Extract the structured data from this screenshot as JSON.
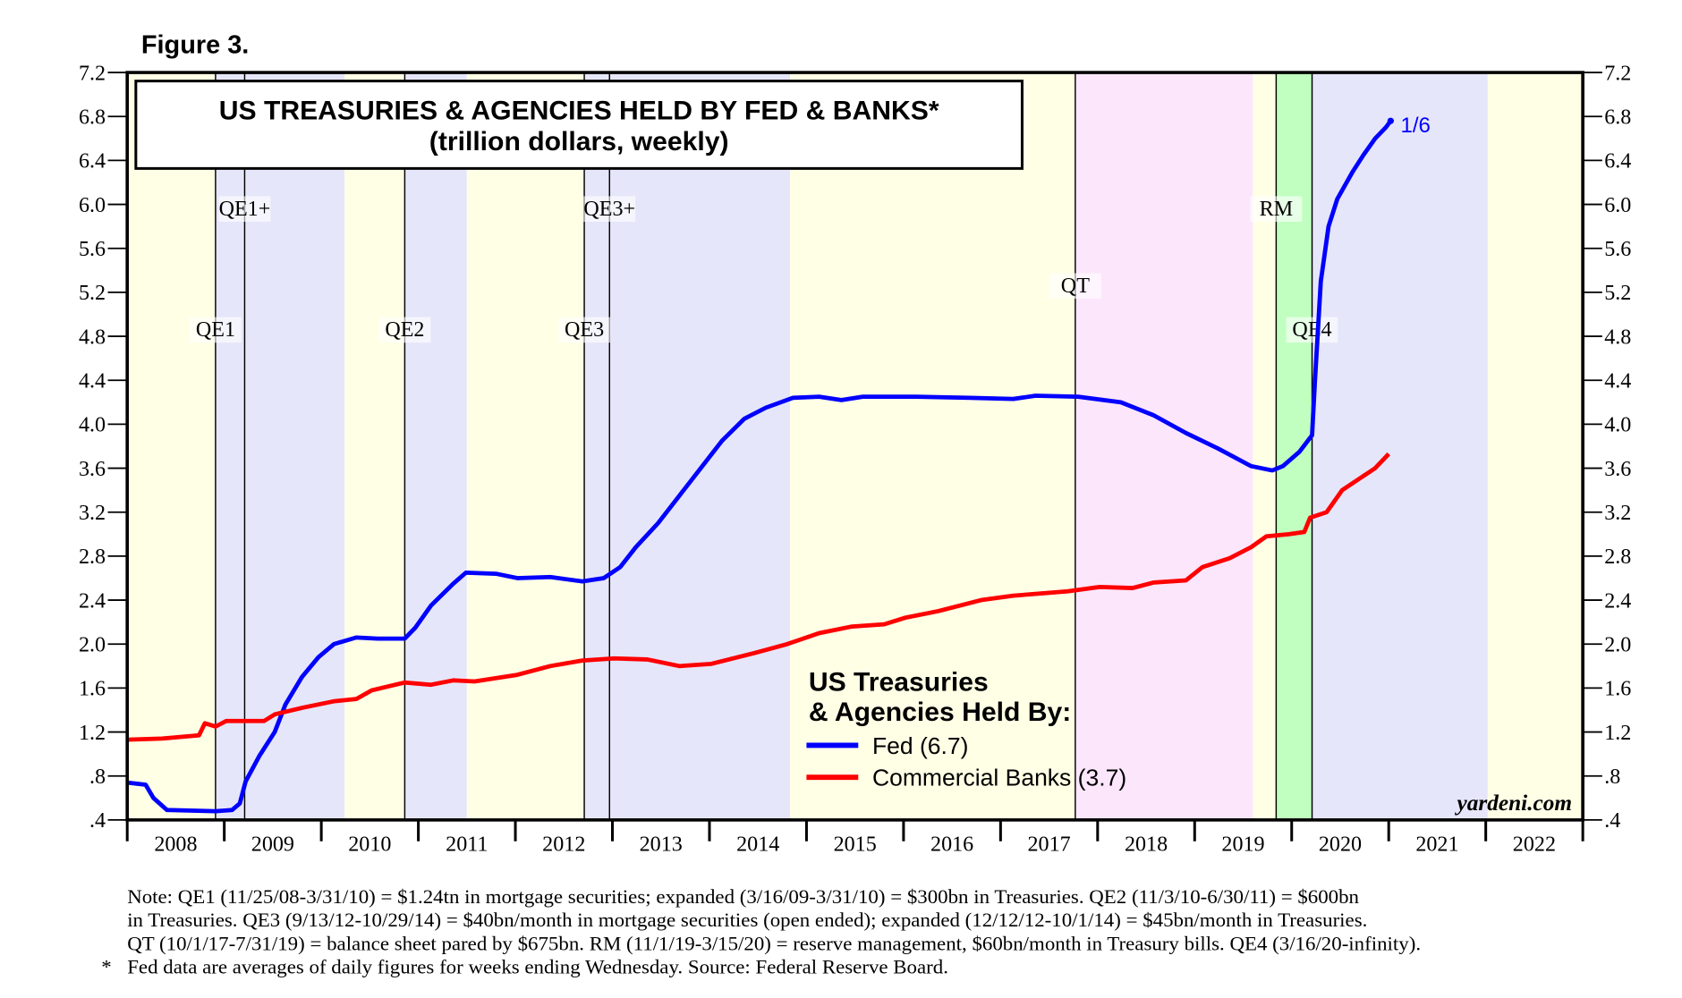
{
  "figure_label": "Figure 3.",
  "chart_data": {
    "type": "line",
    "title": "US TREASURIES & AGENCIES HELD BY FED & BANKS*",
    "subtitle": "(trillion dollars, weekly)",
    "xlabel": "",
    "ylabel": "",
    "xlim": [
      2008,
      2023
    ],
    "ylim": [
      0.4,
      7.2
    ],
    "x_tick_labels": [
      "2008",
      "2009",
      "2010",
      "2011",
      "2012",
      "2013",
      "2014",
      "2015",
      "2016",
      "2017",
      "2018",
      "2019",
      "2020",
      "2021",
      "2022"
    ],
    "y_ticks": [
      0.4,
      0.8,
      1.2,
      1.6,
      2.0,
      2.4,
      2.8,
      3.2,
      3.6,
      4.0,
      4.4,
      4.8,
      5.2,
      5.6,
      6.0,
      6.4,
      6.8,
      7.2
    ],
    "y_tick_labels": [
      ".4",
      ".8",
      "1.2",
      "1.6",
      "2.0",
      "2.4",
      "2.8",
      "3.2",
      "3.6",
      "4.0",
      "4.4",
      "4.8",
      "5.2",
      "5.6",
      "6.0",
      "6.4",
      "6.8",
      "7.2"
    ],
    "grid": false,
    "legend_title": [
      "US Treasuries",
      "& Agencies Held By:"
    ],
    "legend_placement": "bottom-center",
    "series": [
      {
        "name": "Fed (6.7)",
        "color": "#0000ff",
        "x": [
          2008.0,
          2008.19,
          2008.27,
          2008.41,
          2008.91,
          2009.08,
          2009.16,
          2009.22,
          2009.36,
          2009.52,
          2009.63,
          2009.8,
          2009.97,
          2010.13,
          2010.36,
          2010.58,
          2010.86,
          2010.97,
          2011.13,
          2011.36,
          2011.49,
          2011.8,
          2012.02,
          2012.36,
          2012.69,
          2012.91,
          2013.08,
          2013.24,
          2013.47,
          2013.69,
          2013.91,
          2014.13,
          2014.36,
          2014.58,
          2014.86,
          2015.13,
          2015.36,
          2015.58,
          2016.13,
          2016.69,
          2017.13,
          2017.36,
          2017.8,
          2018.24,
          2018.58,
          2018.91,
          2019.24,
          2019.58,
          2019.8,
          2019.91,
          2020.08,
          2020.21,
          2020.24,
          2020.3,
          2020.38,
          2020.47,
          2020.63,
          2020.74,
          2020.86,
          2020.97,
          2021.02
        ],
        "values": [
          0.74,
          0.72,
          0.6,
          0.49,
          0.48,
          0.49,
          0.55,
          0.75,
          0.98,
          1.2,
          1.45,
          1.7,
          1.88,
          2.0,
          2.06,
          2.05,
          2.05,
          2.15,
          2.35,
          2.55,
          2.65,
          2.64,
          2.6,
          2.61,
          2.57,
          2.6,
          2.7,
          2.88,
          3.1,
          3.35,
          3.6,
          3.85,
          4.05,
          4.15,
          4.24,
          4.25,
          4.22,
          4.25,
          4.25,
          4.24,
          4.23,
          4.26,
          4.25,
          4.2,
          4.08,
          3.92,
          3.78,
          3.62,
          3.58,
          3.62,
          3.75,
          3.9,
          4.4,
          5.3,
          5.8,
          6.05,
          6.3,
          6.45,
          6.6,
          6.7,
          6.76
        ]
      },
      {
        "name": "Commercial Banks (3.7)",
        "color": "#ff0000",
        "x": [
          2008.0,
          2008.36,
          2008.74,
          2008.8,
          2008.91,
          2009.02,
          2009.41,
          2009.52,
          2009.8,
          2010.13,
          2010.36,
          2010.52,
          2010.86,
          2011.13,
          2011.36,
          2011.58,
          2012.02,
          2012.36,
          2012.69,
          2013.02,
          2013.36,
          2013.69,
          2014.02,
          2014.47,
          2014.8,
          2015.13,
          2015.47,
          2015.8,
          2016.02,
          2016.36,
          2016.8,
          2017.13,
          2017.69,
          2018.02,
          2018.36,
          2018.58,
          2018.91,
          2019.08,
          2019.36,
          2019.58,
          2019.74,
          2019.97,
          2020.13,
          2020.19,
          2020.36,
          2020.52,
          2020.69,
          2020.86,
          2021.0
        ],
        "values": [
          1.13,
          1.14,
          1.17,
          1.28,
          1.25,
          1.3,
          1.3,
          1.36,
          1.42,
          1.48,
          1.5,
          1.58,
          1.65,
          1.63,
          1.67,
          1.66,
          1.72,
          1.8,
          1.85,
          1.87,
          1.86,
          1.8,
          1.82,
          1.92,
          2.0,
          2.1,
          2.16,
          2.18,
          2.24,
          2.3,
          2.4,
          2.44,
          2.48,
          2.52,
          2.51,
          2.56,
          2.58,
          2.7,
          2.78,
          2.88,
          2.98,
          3.0,
          3.02,
          3.15,
          3.2,
          3.4,
          3.5,
          3.6,
          3.73
        ]
      }
    ],
    "end_label": "1/6",
    "bands": [
      {
        "from": 2008.0,
        "to": 2008.91,
        "color": "#ffffe6"
      },
      {
        "from": 2008.91,
        "to": 2010.24,
        "color": "#e6e6fa"
      },
      {
        "from": 2010.24,
        "to": 2010.86,
        "color": "#ffffe6"
      },
      {
        "from": 2010.86,
        "to": 2011.5,
        "color": "#e6e6fa"
      },
      {
        "from": 2011.5,
        "to": 2012.71,
        "color": "#ffffe6"
      },
      {
        "from": 2012.71,
        "to": 2014.83,
        "color": "#e6e6fa"
      },
      {
        "from": 2014.83,
        "to": 2017.77,
        "color": "#ffffe6"
      },
      {
        "from": 2017.77,
        "to": 2019.6,
        "color": "#fce6fc"
      },
      {
        "from": 2019.6,
        "to": 2019.84,
        "color": "#ffffe6"
      },
      {
        "from": 2019.84,
        "to": 2020.21,
        "color": "#c0ffc0"
      },
      {
        "from": 2020.21,
        "to": 2022.02,
        "color": "#e6e6fa"
      },
      {
        "from": 2022.02,
        "to": 2023.0,
        "color": "#ffffe6"
      }
    ],
    "annotations": [
      {
        "label": "QE1",
        "x": 2008.91,
        "y": 4.8
      },
      {
        "label": "QE1+",
        "x": 2009.21,
        "y": 5.9
      },
      {
        "label": "QE2",
        "x": 2010.86,
        "y": 4.8
      },
      {
        "label": "QE3",
        "x": 2012.71,
        "y": 4.8
      },
      {
        "label": "QE3+",
        "x": 2012.97,
        "y": 5.9
      },
      {
        "label": "QT",
        "x": 2017.77,
        "y": 5.2
      },
      {
        "label": "RM",
        "x": 2019.84,
        "y": 5.9
      },
      {
        "label": "QE4",
        "x": 2020.21,
        "y": 4.8
      }
    ]
  },
  "source_credit": "yardeni.com",
  "notes": [
    "Note: QE1 (11/25/08-3/31/10) = $1.24tn in mortgage securities; expanded (3/16/09-3/31/10) = $300bn in Treasuries. QE2 (11/3/10-6/30/11) = $600bn",
    "in Treasuries. QE3 (9/13/12-10/29/14) = $40bn/month in mortgage securities (open ended); expanded (12/12/12-10/1/14) = $45bn/month in Treasuries.",
    "QT (10/1/17-7/31/19) = balance sheet pared by $675bn. RM (11/1/19-3/15/20) = reserve management, $60bn/month in Treasury bills. QE4 (3/16/20-infinity)."
  ],
  "footnote_marker": "*",
  "footnote": "Fed data are averages of daily figures for weeks ending Wednesday. Source: Federal Reserve Board."
}
